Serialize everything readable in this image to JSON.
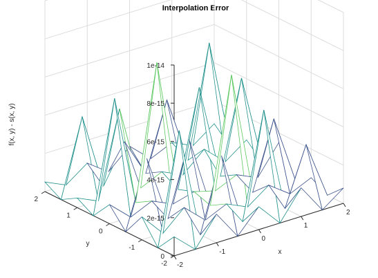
{
  "chart_data": {
    "type": "surface-mesh",
    "title": "Interpolation Error",
    "xlabel": "x",
    "ylabel": "y",
    "zlabel": "f(x, y) - s(x, y)",
    "x_ticks": [
      "-2",
      "-1",
      "0",
      "1",
      "2"
    ],
    "y_ticks": [
      "-2",
      "-1",
      "0",
      "1",
      "2"
    ],
    "z_ticks": [
      "0",
      "2e-15",
      "4e-15",
      "6e-15",
      "8e-15",
      "1e-14"
    ],
    "xlim": [
      -2,
      2
    ],
    "ylim": [
      -2,
      2
    ],
    "zlim": [
      0,
      1e-14
    ],
    "grid": true,
    "x": [
      -2,
      -1.5,
      -1,
      -0.5,
      0,
      0.5,
      1,
      1.5,
      2
    ],
    "y": [
      -2,
      -1.5,
      -1,
      -0.5,
      0,
      0.5,
      1,
      1.5,
      2
    ],
    "z": [
      [
        1e-15,
        0,
        1.5e-15,
        0,
        1.2e-15,
        0,
        1.5e-15,
        0,
        8e-16
      ],
      [
        0,
        5.8e-15,
        0,
        3.8e-15,
        0,
        5.5e-15,
        0,
        3e-15,
        0
      ],
      [
        1.2e-15,
        0,
        1e-15,
        0,
        5e-16,
        0,
        8e-16,
        0,
        5e-16
      ],
      [
        0,
        3.5e-15,
        0,
        3.8e-15,
        0,
        6.5e-15,
        0,
        3.5e-15,
        0
      ],
      [
        1e-15,
        0,
        5e-16,
        0,
        3e-16,
        0,
        5e-16,
        0,
        1.5e-15
      ],
      [
        0,
        5.8e-15,
        0,
        7e-15,
        0,
        5e-15,
        0,
        4.8e-15,
        0
      ],
      [
        5e-16,
        0,
        4.5e-15,
        0,
        5e-16,
        0,
        1e-15,
        0,
        8e-16
      ],
      [
        0,
        4e-15,
        0,
        2e-15,
        0,
        3.5e-15,
        0,
        5.8e-15,
        0
      ],
      [
        5e-16,
        0,
        8e-16,
        0,
        1e-15,
        0,
        5e-16,
        0,
        8e-16
      ]
    ],
    "colormap": [
      "#440154",
      "#3b528b",
      "#21918c",
      "#5ec962",
      "#fde725"
    ]
  }
}
